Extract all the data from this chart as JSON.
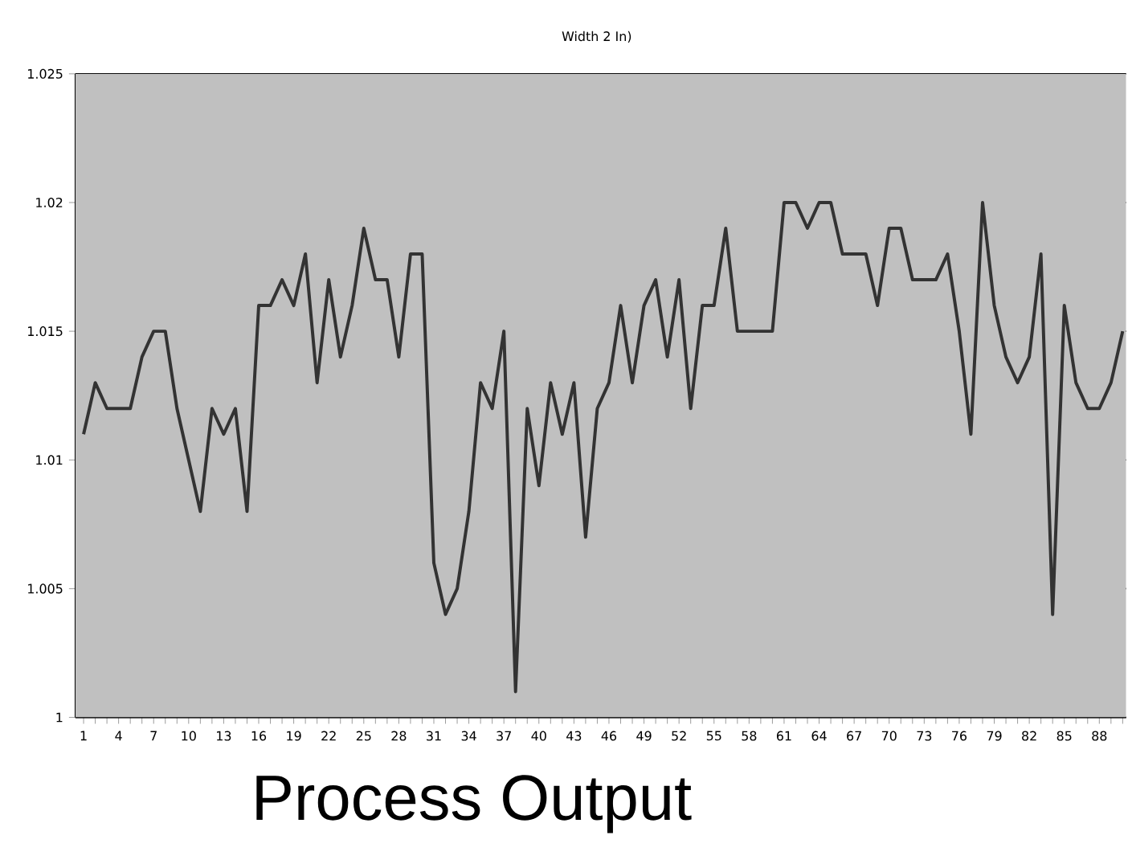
{
  "chart_data": {
    "type": "line",
    "title": "Width 2 In)",
    "xlabel": "Process Output",
    "categories": [
      "1",
      null,
      null,
      "4",
      null,
      null,
      "7",
      null,
      null,
      "10",
      null,
      null,
      "13",
      null,
      null,
      "16",
      null,
      null,
      "19",
      null,
      null,
      "22",
      null,
      null,
      "25",
      null,
      null,
      "28",
      null,
      null,
      "31",
      null,
      null,
      "34",
      null,
      null,
      "37",
      null,
      null,
      "40",
      null,
      null,
      "43",
      null,
      null,
      "46",
      null,
      null,
      "49",
      null,
      null,
      "52",
      null,
      null,
      "55",
      null,
      null,
      "58",
      null,
      null,
      "61",
      null,
      null,
      "64",
      null,
      null,
      "67",
      null,
      null,
      "70",
      null,
      null,
      "73",
      null,
      null,
      "76",
      null,
      null,
      "79",
      null,
      null,
      "82",
      null,
      null,
      "85",
      null,
      null,
      "88",
      null,
      null
    ],
    "series": [
      {
        "color": "#333333",
        "values": [
          1.011,
          1.013,
          1.012,
          1.012,
          1.012,
          1.014,
          1.015,
          1.015,
          1.012,
          1.01,
          1.008,
          1.012,
          1.011,
          1.012,
          1.008,
          1.016,
          1.016,
          1.017,
          1.016,
          1.018,
          1.013,
          1.017,
          1.014,
          1.016,
          1.019,
          1.017,
          1.017,
          1.014,
          1.018,
          1.018,
          1.006,
          1.004,
          1.005,
          1.008,
          1.013,
          1.012,
          1.015,
          1.001,
          1.012,
          1.009,
          1.013,
          1.011,
          1.013,
          1.007,
          1.012,
          1.013,
          1.016,
          1.013,
          1.016,
          1.017,
          1.014,
          1.017,
          1.012,
          1.016,
          1.016,
          1.019,
          1.015,
          1.015,
          1.015,
          1.015,
          1.02,
          1.02,
          1.019,
          1.02,
          1.02,
          1.018,
          1.018,
          1.018,
          1.016,
          1.019,
          1.019,
          1.017,
          1.017,
          1.017,
          1.018,
          1.015,
          1.011,
          1.02,
          1.016,
          1.014,
          1.013,
          1.014,
          1.018,
          1.004,
          1.016,
          1.013,
          1.012,
          1.012,
          1.013,
          1.015
        ]
      }
    ],
    "ylim": [
      1,
      1.025
    ],
    "yticks": [
      1,
      1.005,
      1.01,
      1.015,
      1.02,
      1.025
    ],
    "grid": "y",
    "marker": "none",
    "line_style": "solid"
  }
}
